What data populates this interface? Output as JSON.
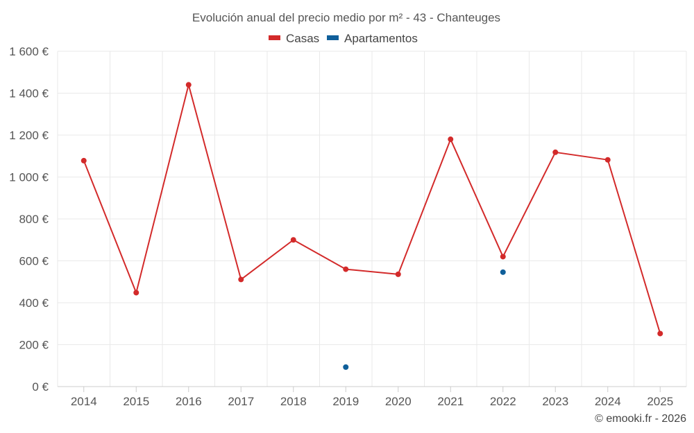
{
  "chart_data": {
    "type": "line",
    "title": "Evolución anual del precio medio por m² - 43 - Chanteuges",
    "categories": [
      "2014",
      "2015",
      "2016",
      "2017",
      "2018",
      "2019",
      "2020",
      "2021",
      "2022",
      "2023",
      "2024",
      "2025"
    ],
    "series": [
      {
        "name": "Casas",
        "color": "#d32a2a",
        "values": [
          1078,
          448,
          1440,
          511,
          700,
          560,
          536,
          1180,
          620,
          1118,
          1082,
          253
        ]
      },
      {
        "name": "Apartamentos",
        "color": "#0f5f9a",
        "values": [
          null,
          null,
          null,
          null,
          null,
          93,
          null,
          null,
          546,
          null,
          null,
          null
        ]
      }
    ],
    "ylim": [
      0,
      1600
    ],
    "yticks": [
      0,
      200,
      400,
      600,
      800,
      1000,
      1200,
      1400,
      1600
    ],
    "ytick_labels": [
      "0 €",
      "200 €",
      "400 €",
      "600 €",
      "800 €",
      "1 000 €",
      "1 200 €",
      "1 400 €",
      "1 600 €"
    ],
    "xlabel": "",
    "ylabel": "",
    "grid": true,
    "legend_position": "top-center"
  },
  "credit": "© emooki.fr - 2026"
}
